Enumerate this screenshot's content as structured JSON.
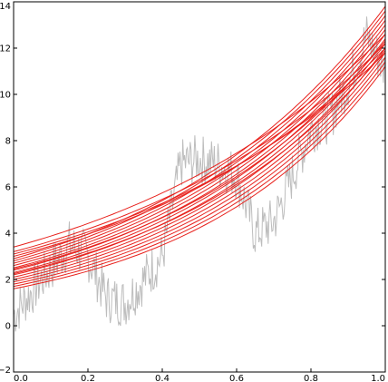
{
  "chart_data": {
    "type": "line",
    "title": "",
    "xlabel": "",
    "ylabel": "",
    "xlim": [
      0.0,
      1.0
    ],
    "ylim": [
      -2,
      14
    ],
    "xticks": [
      "0.0",
      "0.2",
      "0.4",
      "0.6",
      "0.8",
      "1.0"
    ],
    "yticks": [
      "−2",
      "0",
      "2",
      "4",
      "6",
      "8",
      "10",
      "12",
      "14"
    ],
    "grid": false,
    "legend": "none",
    "colors": {
      "noisy": "#bdbdbd",
      "fits": "#e8211c"
    },
    "series": [
      {
        "role": "noisy-observations",
        "x": [
          0.0,
          0.05,
          0.1,
          0.15,
          0.2,
          0.25,
          0.3,
          0.35,
          0.4,
          0.45,
          0.5,
          0.55,
          0.6,
          0.65,
          0.7,
          0.75,
          0.8,
          0.85,
          0.9,
          0.95,
          1.0
        ],
        "y": [
          0.5,
          1.5,
          2.5,
          3.5,
          3.0,
          1.2,
          1.0,
          2.0,
          3.0,
          7.0,
          7.2,
          7.0,
          6.5,
          4.0,
          4.5,
          6.5,
          8.5,
          9.0,
          10.5,
          12.5,
          11.0
        ]
      },
      {
        "role": "fitted-curve",
        "y0": 1.6,
        "y1": 11.2
      },
      {
        "role": "fitted-curve",
        "y0": 1.7,
        "y1": 11.4
      },
      {
        "role": "fitted-curve",
        "y0": 1.8,
        "y1": 11.6
      },
      {
        "role": "fitted-curve",
        "y0": 1.9,
        "y1": 11.8
      },
      {
        "role": "fitted-curve",
        "y0": 2.0,
        "y1": 12.0
      },
      {
        "role": "fitted-curve",
        "y0": 2.1,
        "y1": 12.2
      },
      {
        "role": "fitted-curve",
        "y0": 2.2,
        "y1": 12.4
      },
      {
        "role": "fitted-curve",
        "y0": 2.3,
        "y1": 12.6
      },
      {
        "role": "fitted-curve",
        "y0": 2.4,
        "y1": 12.8
      },
      {
        "role": "fitted-curve",
        "y0": 2.5,
        "y1": 13.0
      },
      {
        "role": "fitted-curve",
        "y0": 2.6,
        "y1": 13.2
      },
      {
        "role": "fitted-curve",
        "y0": 2.7,
        "y1": 13.4
      },
      {
        "role": "fitted-curve",
        "y0": 2.8,
        "y1": 13.6
      },
      {
        "role": "fitted-curve",
        "y0": 2.9,
        "y1": 13.8
      },
      {
        "role": "fitted-curve",
        "y0": 3.0,
        "y1": 12.0
      },
      {
        "role": "fitted-curve",
        "y0": 3.1,
        "y1": 11.8
      },
      {
        "role": "fitted-curve",
        "y0": 3.2,
        "y1": 12.2
      },
      {
        "role": "fitted-curve",
        "y0": 3.4,
        "y1": 12.6
      },
      {
        "role": "fitted-curve",
        "y0": 2.25,
        "y1": 11.9
      },
      {
        "role": "fitted-curve",
        "y0": 2.45,
        "y1": 12.3
      }
    ]
  }
}
